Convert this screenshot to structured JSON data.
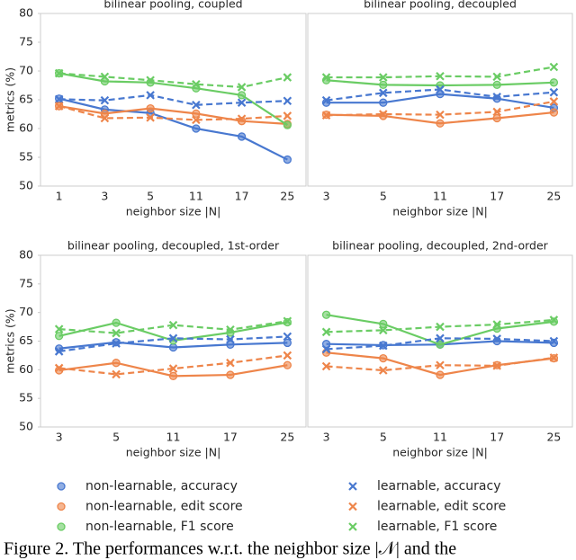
{
  "chart_data": [
    {
      "type": "line",
      "title": "bilinear pooling, coupled",
      "xlabel": "neighbor size |N|",
      "ylabel": "metrics (%)",
      "categories": [
        "1",
        "3",
        "5",
        "11",
        "17",
        "25"
      ],
      "ylim": [
        50,
        80
      ],
      "yticks": [
        50,
        55,
        60,
        65,
        70,
        75,
        80
      ],
      "series": [
        {
          "name": "non-learnable, accuracy",
          "color": "#4878d0",
          "style": "solid",
          "marker": "circle",
          "values": [
            65.2,
            63.3,
            62.7,
            60.0,
            58.6,
            54.6
          ]
        },
        {
          "name": "non-learnable, edit score",
          "color": "#ee854a",
          "style": "solid",
          "marker": "circle",
          "values": [
            63.9,
            62.6,
            63.5,
            62.6,
            61.3,
            60.8
          ]
        },
        {
          "name": "non-learnable, F1 score",
          "color": "#6acc64",
          "style": "solid",
          "marker": "circle",
          "values": [
            69.6,
            68.2,
            68.0,
            67.0,
            65.8,
            60.6
          ]
        },
        {
          "name": "learnable, accuracy",
          "color": "#4878d0",
          "style": "dashed",
          "marker": "x",
          "values": [
            65.1,
            64.9,
            65.8,
            64.1,
            64.5,
            64.8
          ]
        },
        {
          "name": "learnable, edit score",
          "color": "#ee854a",
          "style": "dashed",
          "marker": "x",
          "values": [
            63.9,
            61.8,
            61.9,
            61.5,
            61.7,
            62.2
          ]
        },
        {
          "name": "learnable, F1 score",
          "color": "#6acc64",
          "style": "dashed",
          "marker": "x",
          "values": [
            69.6,
            69.0,
            68.4,
            67.7,
            67.2,
            68.9
          ]
        }
      ]
    },
    {
      "type": "line",
      "title": "bilinear pooling, decoupled",
      "xlabel": "neighbor size |N|",
      "categories": [
        "3",
        "5",
        "11",
        "17",
        "25"
      ],
      "ylim": [
        50,
        80
      ],
      "series": [
        {
          "color": "#4878d0",
          "style": "solid",
          "marker": "circle",
          "values": [
            64.5,
            64.5,
            66.0,
            65.2,
            63.6
          ]
        },
        {
          "color": "#ee854a",
          "style": "solid",
          "marker": "circle",
          "values": [
            62.4,
            62.2,
            60.9,
            61.8,
            62.8
          ]
        },
        {
          "color": "#6acc64",
          "style": "solid",
          "marker": "circle",
          "values": [
            68.4,
            67.6,
            67.5,
            67.6,
            68.0
          ]
        },
        {
          "color": "#4878d0",
          "style": "dashed",
          "marker": "x",
          "values": [
            64.9,
            66.2,
            66.8,
            65.5,
            66.3
          ]
        },
        {
          "color": "#ee854a",
          "style": "dashed",
          "marker": "x",
          "values": [
            62.3,
            62.5,
            62.4,
            62.9,
            64.7
          ]
        },
        {
          "color": "#6acc64",
          "style": "dashed",
          "marker": "x",
          "values": [
            68.9,
            68.9,
            69.1,
            69.0,
            70.7
          ]
        }
      ]
    },
    {
      "type": "line",
      "title": "bilinear pooling, decoupled, 1st-order",
      "xlabel": "neighbor size |N|",
      "ylabel": "metrics (%)",
      "categories": [
        "3",
        "5",
        "11",
        "17",
        "25"
      ],
      "ylim": [
        50,
        80
      ],
      "yticks": [
        50,
        55,
        60,
        65,
        70,
        75,
        80
      ],
      "series": [
        {
          "color": "#4878d0",
          "style": "solid",
          "marker": "circle",
          "values": [
            63.7,
            64.8,
            63.9,
            64.4,
            64.7
          ]
        },
        {
          "color": "#ee854a",
          "style": "solid",
          "marker": "circle",
          "values": [
            59.9,
            61.2,
            58.9,
            59.1,
            60.8
          ]
        },
        {
          "color": "#6acc64",
          "style": "solid",
          "marker": "circle",
          "values": [
            65.9,
            68.2,
            65.1,
            66.5,
            68.3
          ]
        },
        {
          "color": "#4878d0",
          "style": "dashed",
          "marker": "x",
          "values": [
            63.2,
            64.6,
            65.5,
            65.3,
            65.8
          ]
        },
        {
          "color": "#ee854a",
          "style": "dashed",
          "marker": "x",
          "values": [
            60.3,
            59.2,
            60.2,
            61.2,
            62.5
          ]
        },
        {
          "color": "#6acc64",
          "style": "dashed",
          "marker": "x",
          "values": [
            67.1,
            66.4,
            67.8,
            67.0,
            68.5
          ]
        }
      ]
    },
    {
      "type": "line",
      "title": "bilinear pooling, decoupled, 2nd-order",
      "xlabel": "neighbor size |N|",
      "categories": [
        "3",
        "5",
        "11",
        "17",
        "25"
      ],
      "ylim": [
        50,
        80
      ],
      "series": [
        {
          "color": "#4878d0",
          "style": "solid",
          "marker": "circle",
          "values": [
            64.5,
            64.3,
            64.4,
            65.0,
            64.7
          ]
        },
        {
          "color": "#ee854a",
          "style": "solid",
          "marker": "circle",
          "values": [
            63.0,
            62.0,
            59.1,
            60.8,
            62.0
          ]
        },
        {
          "color": "#6acc64",
          "style": "solid",
          "marker": "circle",
          "values": [
            69.6,
            68.0,
            64.4,
            67.2,
            68.4
          ]
        },
        {
          "color": "#4878d0",
          "style": "dashed",
          "marker": "x",
          "values": [
            63.6,
            64.2,
            65.5,
            65.4,
            65.0
          ]
        },
        {
          "color": "#ee854a",
          "style": "dashed",
          "marker": "x",
          "values": [
            60.6,
            59.9,
            60.8,
            60.7,
            62.1
          ]
        },
        {
          "color": "#6acc64",
          "style": "dashed",
          "marker": "x",
          "values": [
            66.6,
            66.9,
            67.5,
            67.9,
            68.7
          ]
        }
      ]
    }
  ],
  "caption": "Figure 2. The performances w.r.t. the neighbor size |𝒩| and the"
}
